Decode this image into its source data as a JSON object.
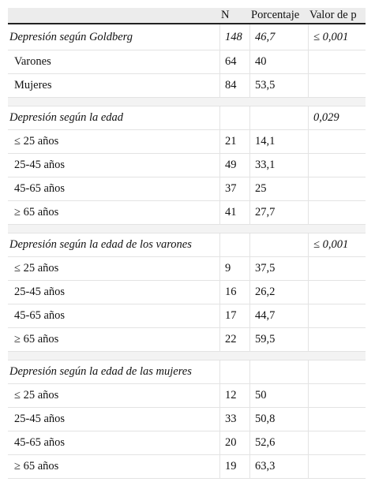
{
  "header": {
    "label": "",
    "n": "N",
    "porcentaje": "Porcentaje",
    "valor_p": "Valor de p"
  },
  "sections": [
    {
      "title": "Depresión según Goldberg",
      "n": "148",
      "pct": "46,7",
      "p": "≤ 0,001",
      "rows": [
        {
          "label": "Varones",
          "n": "64",
          "pct": "40",
          "p": ""
        },
        {
          "label": "Mujeres",
          "n": "84",
          "pct": "53,5",
          "p": ""
        }
      ]
    },
    {
      "title": "Depresión según la edad",
      "n": "",
      "pct": "",
      "p": "0,029",
      "rows": [
        {
          "label": "≤ 25 años",
          "n": "21",
          "pct": "14,1",
          "p": ""
        },
        {
          "label": "25-45 años",
          "n": "49",
          "pct": "33,1",
          "p": ""
        },
        {
          "label": "45-65 años",
          "n": "37",
          "pct": "25",
          "p": ""
        },
        {
          "label": "≥ 65 años",
          "n": "41",
          "pct": "27,7",
          "p": ""
        }
      ]
    },
    {
      "title": "Depresión según la edad de los varones",
      "n": "",
      "pct": "",
      "p": "≤ 0,001",
      "rows": [
        {
          "label": "≤ 25 años",
          "n": "9",
          "pct": "37,5",
          "p": ""
        },
        {
          "label": "25-45 años",
          "n": "16",
          "pct": "26,2",
          "p": ""
        },
        {
          "label": "45-65 años",
          "n": "17",
          "pct": "44,7",
          "p": ""
        },
        {
          "label": "≥ 65 años",
          "n": "22",
          "pct": "59,5",
          "p": ""
        }
      ]
    },
    {
      "title": "Depresión según la edad de las mujeres",
      "n": "",
      "pct": "",
      "p": "",
      "rows": [
        {
          "label": "≤ 25 años",
          "n": "12",
          "pct": "50",
          "p": ""
        },
        {
          "label": "25-45 años",
          "n": "33",
          "pct": "50,8",
          "p": ""
        },
        {
          "label": "45-65 años",
          "n": "20",
          "pct": "52,6",
          "p": ""
        },
        {
          "label": "≥ 65 años",
          "n": "19",
          "pct": "63,3",
          "p": ""
        }
      ]
    }
  ]
}
